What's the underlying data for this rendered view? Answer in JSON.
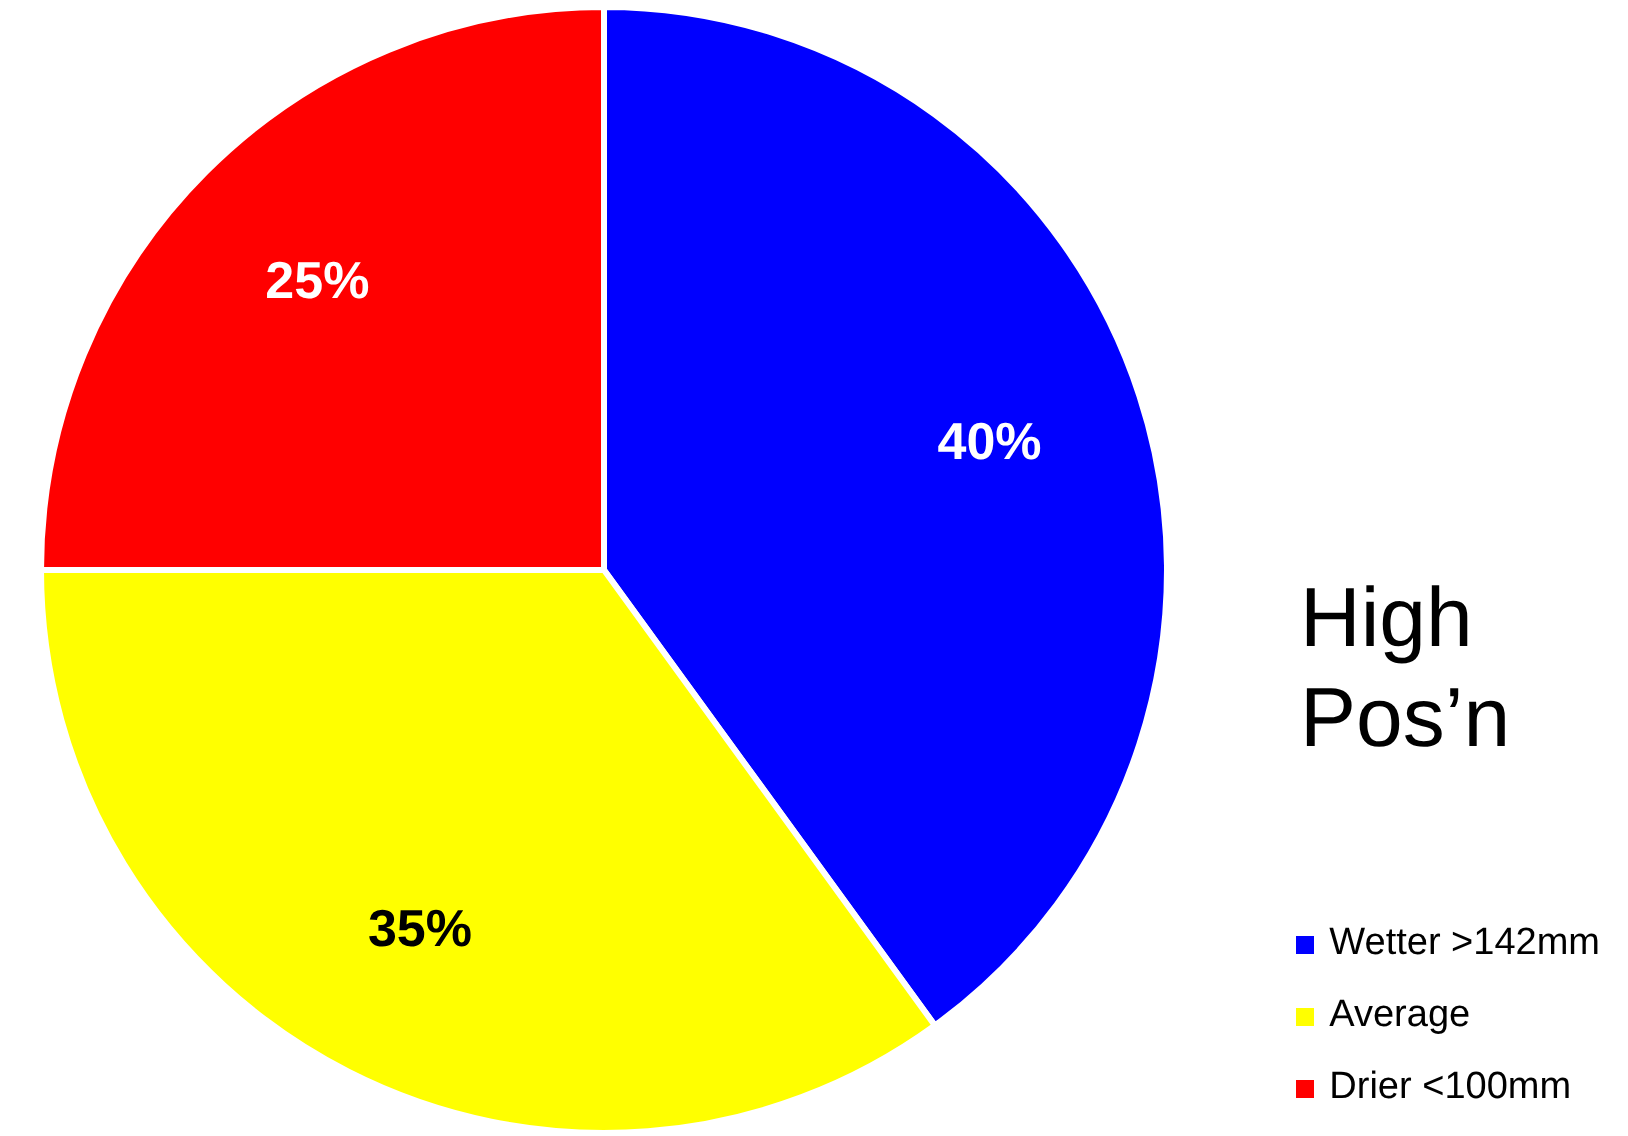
{
  "chart_data": {
    "type": "pie",
    "title": "High Pos’n",
    "categories": [
      "Wetter >142mm",
      "Average",
      "Drier <100mm"
    ],
    "values": [
      40,
      35,
      25
    ],
    "colors": [
      "#0000ff",
      "#ffff00",
      "#ff0000"
    ],
    "value_labels": [
      "40%",
      "35%",
      "25%"
    ],
    "legend": "bottom right"
  }
}
